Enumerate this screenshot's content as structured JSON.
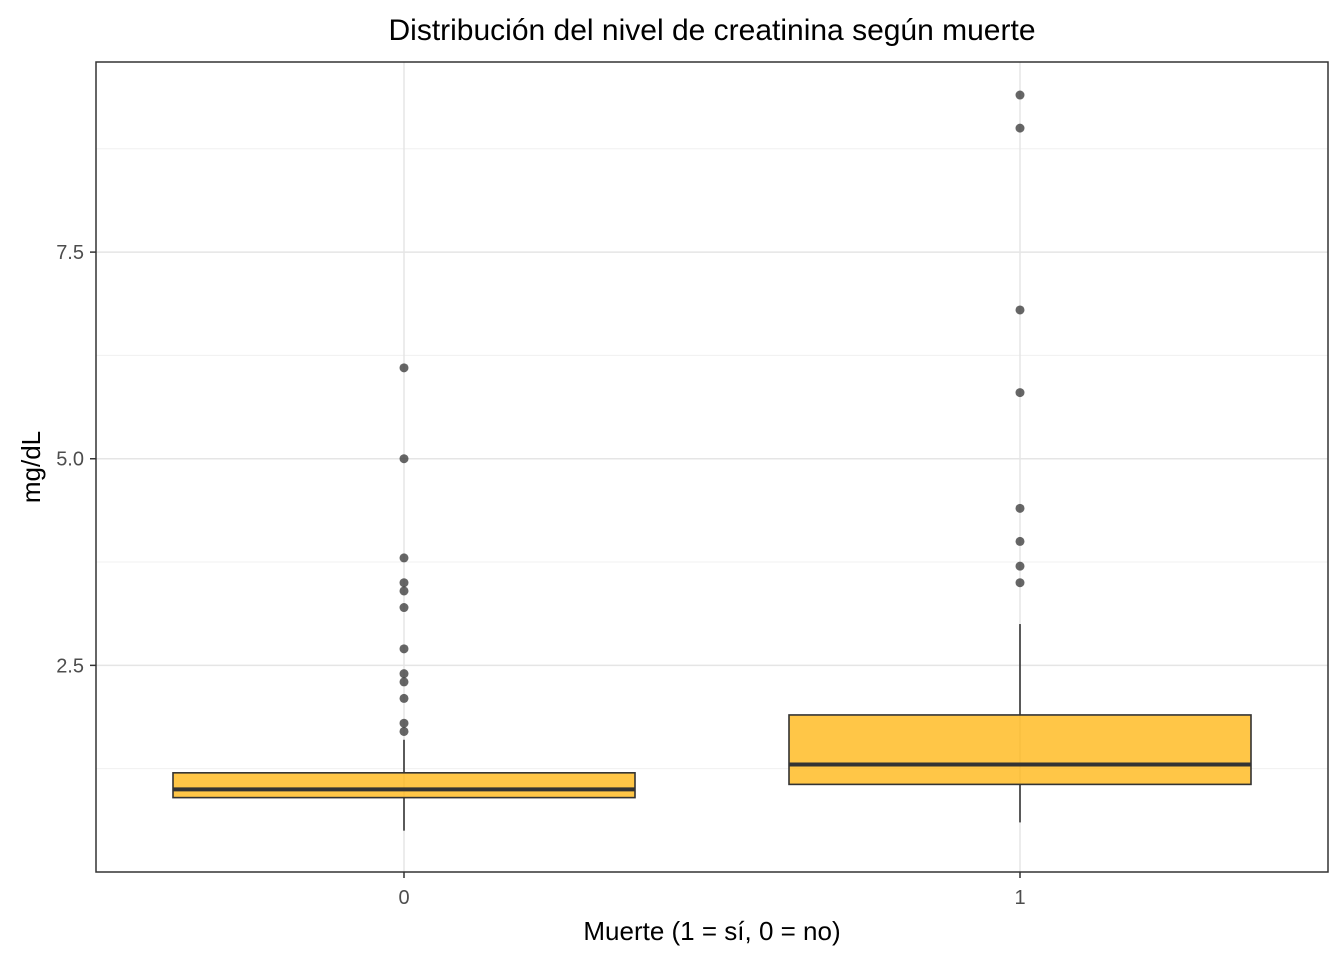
{
  "chart_data": {
    "type": "boxplot",
    "title": "Distribución del nivel de creatinina según muerte",
    "xlabel": "Muerte (1 = sí, 0 = no)",
    "ylabel": "mg/dL",
    "ylim": [
      0.0,
      9.8
    ],
    "y_ticks": [
      2.5,
      5.0,
      7.5
    ],
    "y_tick_labels": [
      "2.5",
      "5.0",
      "7.5"
    ],
    "grid": true,
    "box_color": "#FFB000",
    "outlier_color": "#333333",
    "categories": [
      "0",
      "1"
    ],
    "boxes": [
      {
        "category": "0",
        "whisker_low": 0.5,
        "q1": 0.9,
        "median": 1.0,
        "q3": 1.2,
        "whisker_high": 1.6,
        "outliers": [
          1.7,
          1.8,
          2.1,
          2.3,
          2.4,
          2.7,
          3.2,
          3.4,
          3.5,
          3.8,
          5.0,
          6.1
        ]
      },
      {
        "category": "1",
        "whisker_low": 0.6,
        "q1": 1.06,
        "median": 1.3,
        "q3": 1.9,
        "whisker_high": 3.0,
        "outliers": [
          3.5,
          3.7,
          4.0,
          4.4,
          5.8,
          6.8,
          9.0,
          9.4
        ]
      }
    ]
  }
}
